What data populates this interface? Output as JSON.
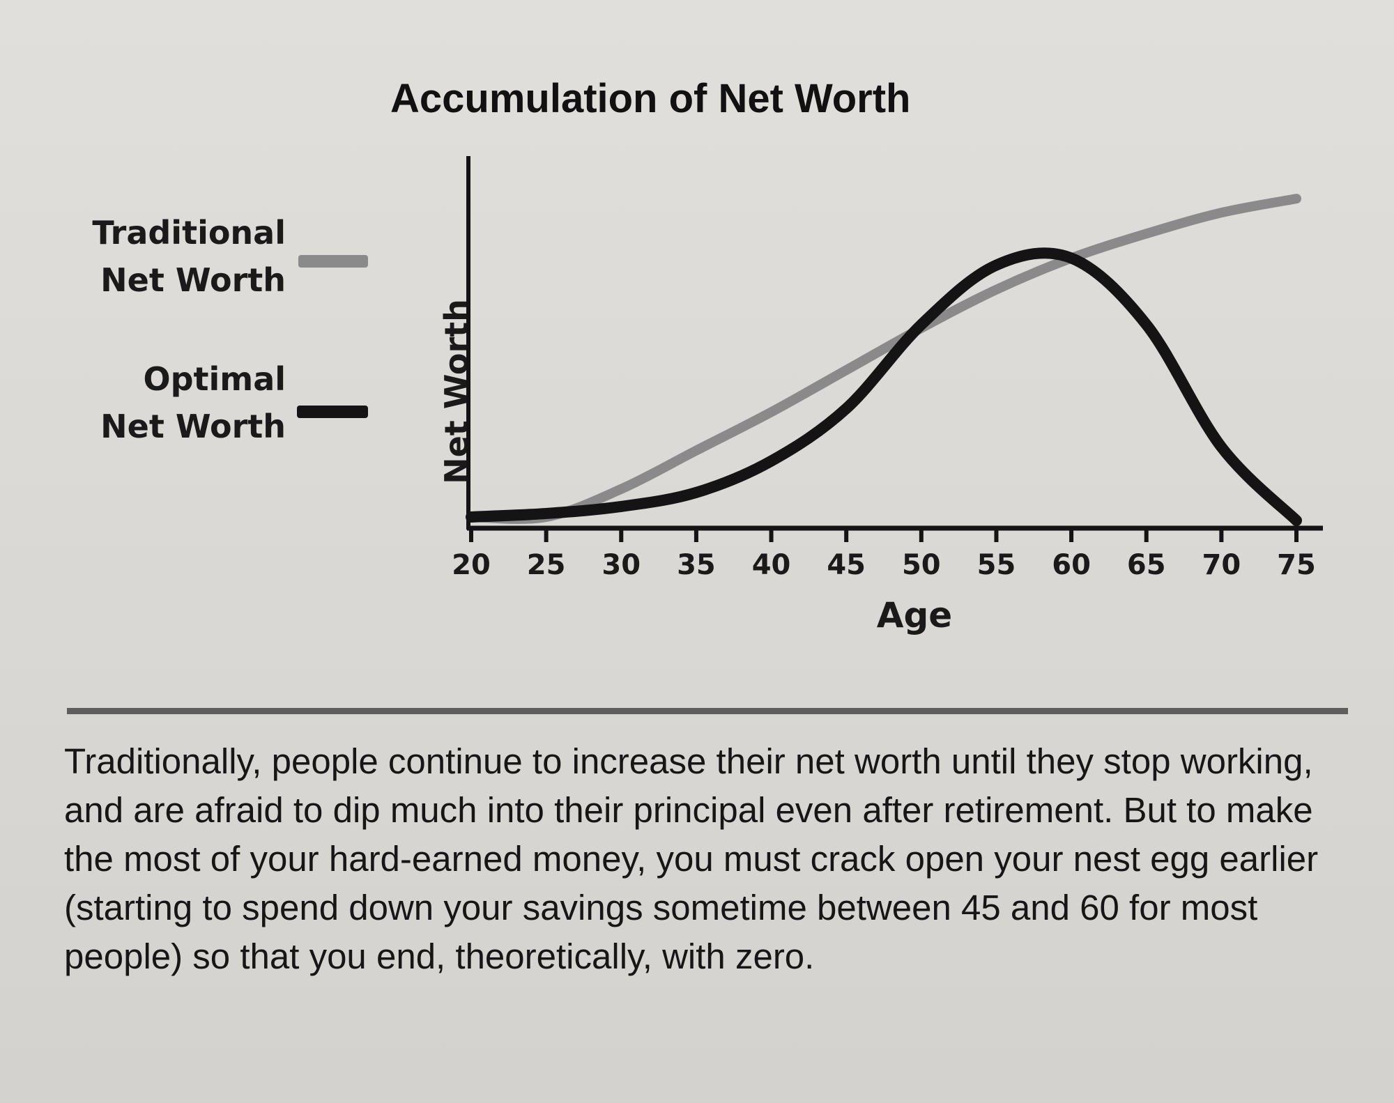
{
  "chart_data": {
    "type": "line",
    "title": "Accumulation of Net Worth",
    "xlabel": "Age",
    "ylabel": "Net Worth",
    "x": [
      20,
      25,
      30,
      35,
      40,
      45,
      50,
      55,
      60,
      65,
      70,
      75
    ],
    "xlim": [
      20,
      75
    ],
    "ylim": [
      0,
      1
    ],
    "y_ticks_shown": false,
    "legend_position": "left",
    "series": [
      {
        "name": "Traditional Net Worth",
        "color": "#8a8a8a",
        "values": [
          0.02,
          0.02,
          0.1,
          0.21,
          0.32,
          0.44,
          0.56,
          0.67,
          0.76,
          0.83,
          0.89,
          0.93
        ]
      },
      {
        "name": "Optimal Net Worth",
        "color": "#141414",
        "values": [
          0.02,
          0.03,
          0.05,
          0.09,
          0.18,
          0.33,
          0.57,
          0.74,
          0.76,
          0.57,
          0.22,
          0.01
        ]
      }
    ]
  },
  "legend": {
    "traditional": [
      "Traditional",
      "Net Worth"
    ],
    "optimal": [
      "Optimal",
      "Net Worth"
    ]
  },
  "caption": "Traditionally, people continue to increase their net worth until they stop working, and are afraid to dip much into their principal even after retirement. But to make the most of your hard-earned money, you must crack open your nest egg earlier (starting to spend down your savings sometime between 45 and 60 for most people) so that you end, theoretically, with zero."
}
